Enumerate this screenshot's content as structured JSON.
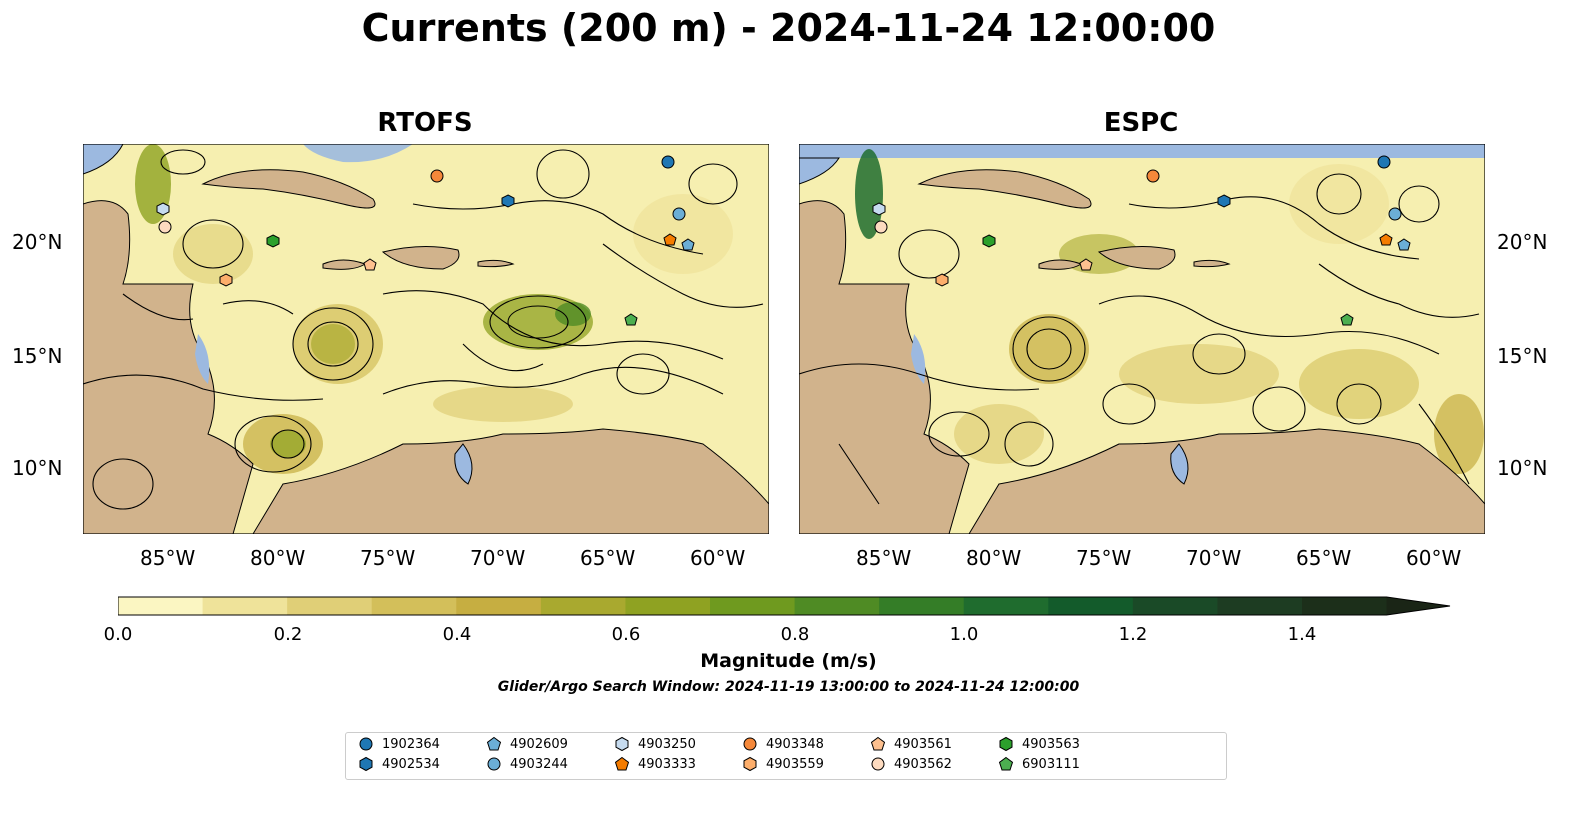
{
  "title": "Currents (200 m) - 2024-11-24 12:00:00",
  "panels": [
    {
      "name": "RTOFS"
    },
    {
      "name": "ESPC"
    }
  ],
  "x_ticks": [
    "85°W",
    "80°W",
    "75°W",
    "70°W",
    "65°W",
    "60°W"
  ],
  "y_ticks": [
    "20°N",
    "15°N",
    "10°N"
  ],
  "colorbar": {
    "label": "Magnitude (m/s)",
    "ticks": [
      "0.0",
      "0.2",
      "0.4",
      "0.6",
      "0.8",
      "1.0",
      "1.2",
      "1.4"
    ],
    "colors": [
      "#fbf6c2",
      "#efe39a",
      "#e0cf77",
      "#d3bf5a",
      "#c6ae41",
      "#a9a92f",
      "#8fa222",
      "#6f9a1f",
      "#4f8b24",
      "#347d27",
      "#1f6c2e",
      "#135b2b",
      "#1a4a27",
      "#1d3c22",
      "#1c2f1a",
      "#1a2516"
    ]
  },
  "search_window": "Glider/Argo Search Window: 2024-11-19 13:00:00 to 2024-11-24 12:00:00",
  "colors": {
    "ocean": "#9cb9e0",
    "land": "#d1b38c",
    "water_line": "#a3b8d8"
  },
  "floats": [
    {
      "id": "1902364",
      "marker": "circle",
      "color": "#1f77b4"
    },
    {
      "id": "4902534",
      "marker": "hexagon",
      "color": "#1f77b4"
    },
    {
      "id": "4902609",
      "marker": "pentagon",
      "color": "#6baed6"
    },
    {
      "id": "4903244",
      "marker": "circle",
      "color": "#6baed6"
    },
    {
      "id": "4903250",
      "marker": "hexagon",
      "color": "#c6dbef"
    },
    {
      "id": "4903333",
      "marker": "pentagon",
      "color": "#f57c00"
    },
    {
      "id": "4903348",
      "marker": "circle",
      "color": "#f5883a"
    },
    {
      "id": "4903559",
      "marker": "hexagon",
      "color": "#fdae6b"
    },
    {
      "id": "4903561",
      "marker": "pentagon",
      "color": "#fdc08f"
    },
    {
      "id": "4903562",
      "marker": "circle",
      "color": "#fddbc0"
    },
    {
      "id": "4903563",
      "marker": "hexagon",
      "color": "#2ca02c"
    },
    {
      "id": "6903111",
      "marker": "pentagon",
      "color": "#4caf50"
    }
  ]
}
